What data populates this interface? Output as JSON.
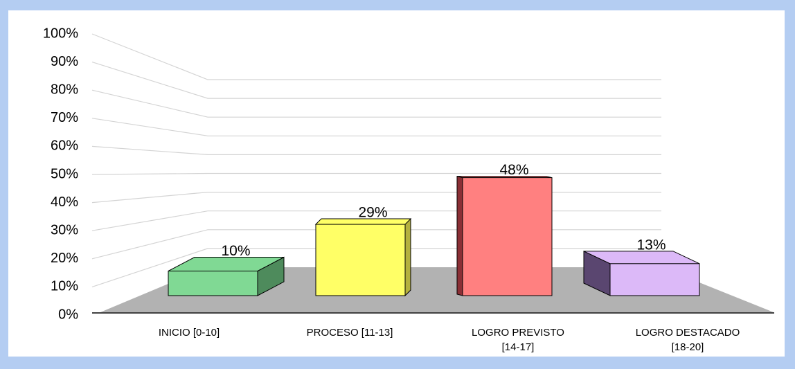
{
  "chart_data": {
    "type": "bar3d",
    "categories": [
      "INICIO  [0-10]",
      "PROCESO  [11-13]",
      "LOGRO PREVISTO\n[14-17]",
      "LOGRO DESTACADO\n[18-20]"
    ],
    "values": [
      10,
      29,
      48,
      13
    ],
    "value_labels": [
      "10%",
      "29%",
      "48%",
      "13%"
    ],
    "colors": [
      "#80d994",
      "#ffff66",
      "#ff8080",
      "#dcb9f8"
    ],
    "side_colors": [
      "#4e8b5c",
      "#b5b13e",
      "#8a2f35",
      "#5a4670"
    ],
    "ylim": [
      0,
      100
    ],
    "yticks": [
      {
        "value": 0,
        "label": "0%"
      },
      {
        "value": 10,
        "label": "10%"
      },
      {
        "value": 20,
        "label": "20%"
      },
      {
        "value": 30,
        "label": "30%"
      },
      {
        "value": 40,
        "label": "40%"
      },
      {
        "value": 50,
        "label": "50%"
      },
      {
        "value": 60,
        "label": "60%"
      },
      {
        "value": 70,
        "label": "70%"
      },
      {
        "value": 80,
        "label": "80%"
      },
      {
        "value": 90,
        "label": "90%"
      },
      {
        "value": 100,
        "label": "100%"
      }
    ],
    "grid": true
  }
}
